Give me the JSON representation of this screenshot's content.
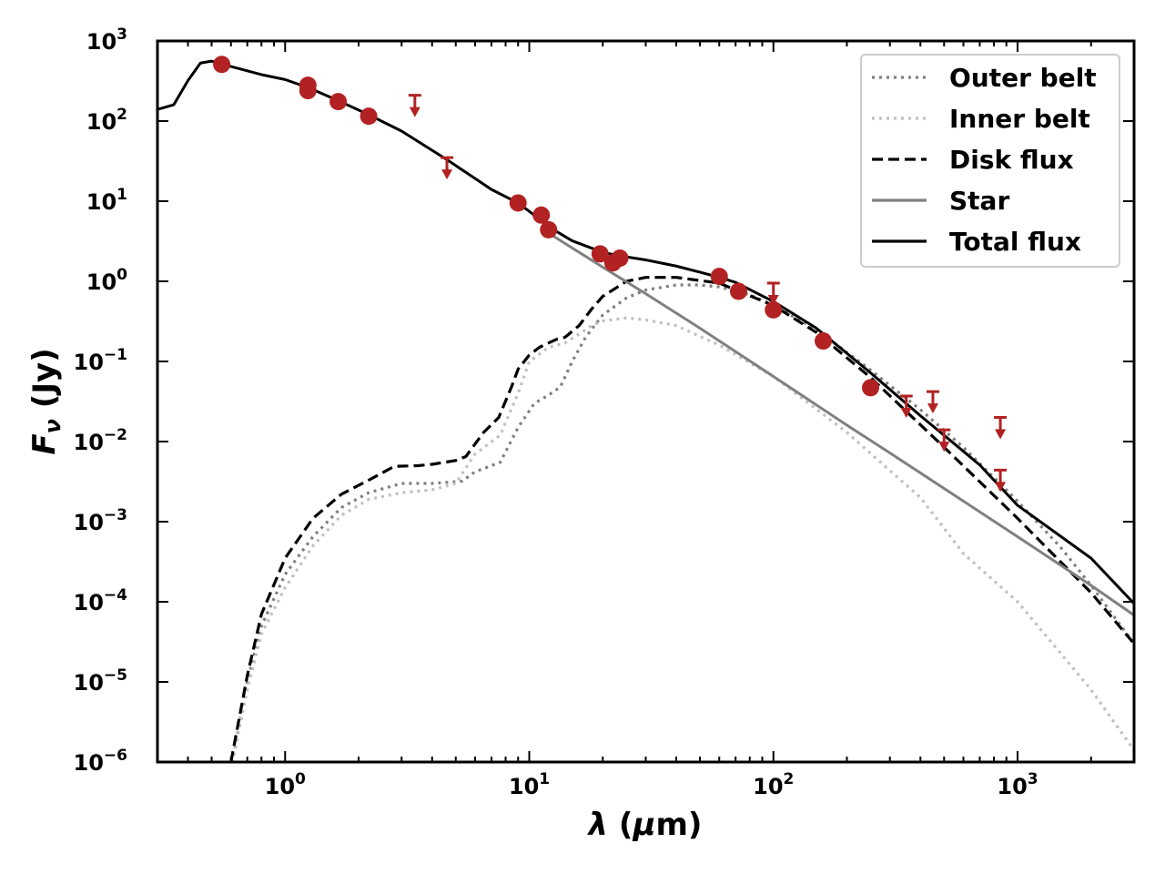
{
  "chart_data": {
    "type": "line",
    "title": "",
    "xlabel": "λ (μm)",
    "ylabel": "Fν (Jy)",
    "xscale": "log",
    "yscale": "log",
    "xlim": [
      0.3,
      3000
    ],
    "ylim": [
      1e-06,
      1000
    ],
    "grid": false,
    "legend_position": "top-right",
    "x_ticks": [
      {
        "value": 1,
        "base": "10",
        "exp": "0"
      },
      {
        "value": 10,
        "base": "10",
        "exp": "1"
      },
      {
        "value": 100,
        "base": "10",
        "exp": "2"
      },
      {
        "value": 1000,
        "base": "10",
        "exp": "3"
      }
    ],
    "y_ticks": [
      {
        "value": 1000,
        "base": "10",
        "exp": "3"
      },
      {
        "value": 100,
        "base": "10",
        "exp": "2"
      },
      {
        "value": 10,
        "base": "10",
        "exp": "1"
      },
      {
        "value": 1,
        "base": "10",
        "exp": "0"
      },
      {
        "value": 0.1,
        "base": "10",
        "exp": "−1"
      },
      {
        "value": 0.01,
        "base": "10",
        "exp": "−2"
      },
      {
        "value": 0.001,
        "base": "10",
        "exp": "−3"
      },
      {
        "value": 0.0001,
        "base": "10",
        "exp": "−4"
      },
      {
        "value": 1e-05,
        "base": "10",
        "exp": "−5"
      },
      {
        "value": 1e-06,
        "base": "10",
        "exp": "−6"
      }
    ],
    "series": [
      {
        "name": "Outer belt",
        "style": "dotted",
        "color": "#7f7f7f",
        "x": [
          0.6,
          0.7,
          0.8,
          1.0,
          1.3,
          1.7,
          2.2,
          3.0,
          4.0,
          5.3,
          6.0,
          7.6,
          9.0,
          10.5,
          12.0,
          13.4,
          15.0,
          17.0,
          20.0,
          25.0,
          30.0,
          40.0,
          50.0,
          60.0,
          80.0,
          100,
          150,
          250,
          400,
          600,
          1000,
          1500,
          2000,
          3000
        ],
        "y": [
          8e-07,
          1e-05,
          5e-05,
          0.00022,
          0.00065,
          0.0015,
          0.0023,
          0.003,
          0.003,
          0.0032,
          0.0042,
          0.0055,
          0.015,
          0.03,
          0.038,
          0.048,
          0.1,
          0.2,
          0.38,
          0.62,
          0.78,
          0.9,
          0.9,
          0.85,
          0.68,
          0.5,
          0.25,
          0.078,
          0.025,
          0.0085,
          0.0018,
          0.00048,
          0.00016,
          3e-05
        ]
      },
      {
        "name": "Inner belt",
        "style": "dotted",
        "color": "#c0c0c0",
        "x": [
          0.6,
          0.7,
          0.8,
          1.0,
          1.3,
          1.7,
          2.2,
          3.0,
          4.0,
          5.0,
          6.0,
          7.6,
          9.0,
          10.0,
          12.0,
          14.0,
          16.0,
          18.0,
          20.0,
          25.0,
          30.0,
          40.0,
          60.0,
          100,
          200,
          400,
          600,
          1000,
          2000,
          3000
        ],
        "y": [
          8e-07,
          8e-06,
          4e-05,
          0.00015,
          0.0005,
          0.0012,
          0.0019,
          0.0023,
          0.0025,
          0.003,
          0.007,
          0.012,
          0.04,
          0.1,
          0.15,
          0.17,
          0.22,
          0.28,
          0.32,
          0.35,
          0.33,
          0.28,
          0.16,
          0.065,
          0.013,
          0.002,
          0.0004,
          0.0001,
          8e-06,
          1.4e-06
        ]
      },
      {
        "name": "Disk flux",
        "style": "dashed",
        "color": "#000000",
        "x": [
          0.6,
          0.7,
          0.8,
          1.0,
          1.3,
          1.7,
          2.2,
          2.8,
          3.5,
          4.0,
          5.0,
          5.5,
          6.5,
          7.5,
          8.5,
          9.0,
          10.0,
          11.0,
          12.0,
          13.0,
          14.0,
          16.0,
          18.0,
          20.0,
          25.0,
          30.0,
          40.0,
          60.0,
          100,
          150,
          250,
          500,
          1000,
          2000,
          3000
        ],
        "y": [
          1e-06,
          1.2e-05,
          7e-05,
          0.00035,
          0.0011,
          0.0022,
          0.0033,
          0.0049,
          0.005,
          0.0052,
          0.0058,
          0.0065,
          0.013,
          0.02,
          0.05,
          0.08,
          0.12,
          0.15,
          0.17,
          0.19,
          0.2,
          0.28,
          0.45,
          0.65,
          1.0,
          1.12,
          1.12,
          0.95,
          0.5,
          0.23,
          0.063,
          0.0085,
          0.0011,
          0.00013,
          3e-05
        ]
      },
      {
        "name": "Star",
        "style": "solid",
        "color": "#808080",
        "x": [
          12.0,
          20.0,
          30.0,
          50.0,
          100,
          200,
          300,
          500,
          1000,
          2000,
          3000
        ],
        "y": [
          4.0,
          1.5,
          0.7,
          0.26,
          0.065,
          0.016,
          0.0072,
          0.0026,
          0.00065,
          0.00016,
          6.8e-05
        ]
      },
      {
        "name": "Total flux",
        "style": "solid",
        "color": "#000000",
        "x": [
          0.3,
          0.35,
          0.4,
          0.45,
          0.5,
          0.55,
          0.6,
          0.8,
          1.0,
          1.25,
          1.65,
          2.2,
          3.0,
          4.6,
          7.0,
          9.0,
          11.0,
          12.0,
          15.0,
          20.0,
          23.0,
          30.0,
          40.0,
          50.0,
          60.0,
          70.0,
          100,
          150,
          250,
          400,
          500,
          700,
          1000,
          2000,
          3000
        ],
        "y": [
          140,
          160,
          320,
          530,
          560,
          520,
          480,
          380,
          330,
          260,
          180,
          120,
          75,
          33,
          14,
          9.5,
          6.0,
          4.8,
          3.2,
          2.3,
          2.1,
          1.85,
          1.55,
          1.3,
          1.12,
          0.97,
          0.56,
          0.26,
          0.072,
          0.021,
          0.012,
          0.0051,
          0.0016,
          0.00035,
          9.5e-05
        ]
      }
    ],
    "photometry": {
      "color": "#b22222",
      "detections": [
        {
          "x": 0.55,
          "y": 510
        },
        {
          "x": 1.24,
          "y": 280
        },
        {
          "x": 1.24,
          "y": 240
        },
        {
          "x": 1.65,
          "y": 175
        },
        {
          "x": 2.2,
          "y": 115
        },
        {
          "x": 9.0,
          "y": 9.5
        },
        {
          "x": 11.2,
          "y": 6.7
        },
        {
          "x": 12.0,
          "y": 4.4
        },
        {
          "x": 19.5,
          "y": 2.2
        },
        {
          "x": 22.0,
          "y": 1.7
        },
        {
          "x": 23.5,
          "y": 1.95
        },
        {
          "x": 60.0,
          "y": 1.15
        },
        {
          "x": 72.0,
          "y": 0.75
        },
        {
          "x": 100,
          "y": 0.44
        },
        {
          "x": 160,
          "y": 0.18
        },
        {
          "x": 250,
          "y": 0.047
        }
      ],
      "upper_limits": [
        {
          "x": 3.4,
          "y": 210
        },
        {
          "x": 4.6,
          "y": 35
        },
        {
          "x": 100,
          "y": 0.95
        },
        {
          "x": 350,
          "y": 0.037
        },
        {
          "x": 450,
          "y": 0.042
        },
        {
          "x": 500,
          "y": 0.014
        },
        {
          "x": 850,
          "y": 0.02
        },
        {
          "x": 850,
          "y": 0.0044
        }
      ]
    }
  }
}
